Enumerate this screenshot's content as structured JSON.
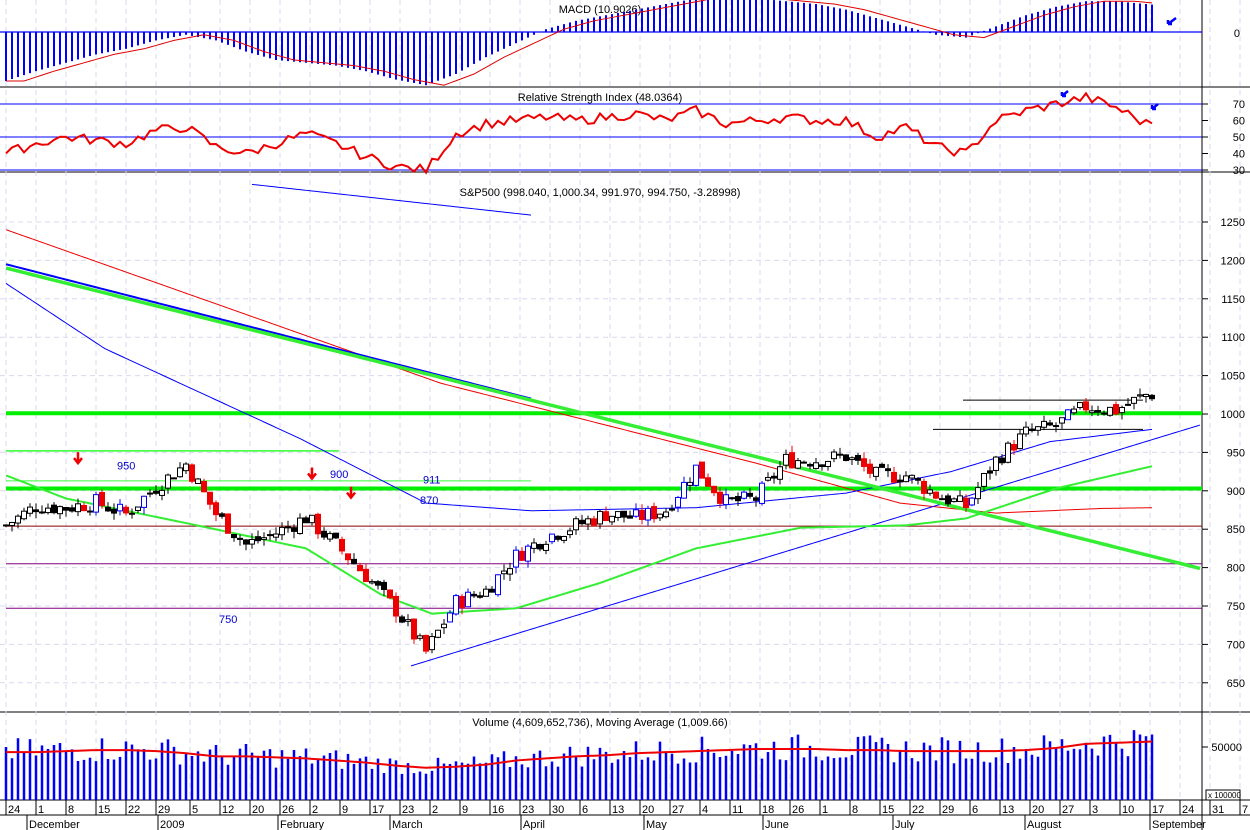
{
  "chart_data": {
    "type": "candlestick",
    "title": "S&P500 (998.040, 1,000.34, 991.970, 994.750, -3.28998)",
    "price_axis": {
      "ticks": [
        1250,
        1200,
        1150,
        1100,
        1050,
        1000,
        950,
        900,
        850,
        800,
        750,
        700,
        650
      ],
      "range": [
        615,
        1315
      ]
    },
    "weeks": [
      "Nov 24",
      "Dec 1",
      "Dec 8",
      "Dec 15",
      "Dec 22",
      "Dec 29",
      "Jan 5",
      "Jan 12",
      "Jan 20",
      "Jan 26",
      "Feb 2",
      "Feb 9",
      "Feb 17",
      "Feb 23",
      "Mar 2",
      "Mar 9",
      "Mar 16",
      "Mar 23",
      "Mar 30",
      "Apr 6",
      "Apr 13",
      "Apr 20",
      "Apr 27",
      "May 4",
      "May 11",
      "May 18",
      "May 26",
      "Jun 1",
      "Jun 8",
      "Jun 15",
      "Jun 22",
      "Jun 29",
      "Jul 6",
      "Jul 13",
      "Jul 20",
      "Jul 27",
      "Aug 3",
      "Aug 10",
      "Aug 17",
      "Aug 24",
      "Aug 31"
    ],
    "weekly_close": [
      855,
      880,
      878,
      885,
      870,
      905,
      935,
      870,
      830,
      845,
      865,
      830,
      790,
      745,
      690,
      755,
      770,
      815,
      840,
      855,
      870,
      865,
      875,
      930,
      885,
      890,
      940,
      940,
      945,
      920,
      920,
      895,
      880,
      940,
      975,
      985,
      1010,
      1005,
      1025,
      1030,
      995
    ],
    "x_ticks": [
      "24",
      "1",
      "8",
      "15",
      "22",
      "29",
      "5",
      "12",
      "20",
      "26",
      "2",
      "9",
      "17",
      "23",
      "2",
      "9",
      "16",
      "23",
      "30",
      "6",
      "13",
      "20",
      "27",
      "4",
      "11",
      "18",
      "26",
      "1",
      "8",
      "15",
      "22",
      "29",
      "6",
      "13",
      "20",
      "27",
      "3",
      "10",
      "17",
      "24",
      "31",
      "7"
    ],
    "months": [
      "December",
      "2009",
      "February",
      "March",
      "April",
      "May",
      "June",
      "July",
      "August",
      "September"
    ],
    "overlays": {
      "ma_green": [
        [
          0,
          920
        ],
        [
          2,
          890
        ],
        [
          6,
          858
        ],
        [
          10,
          825
        ],
        [
          12.5,
          765
        ],
        [
          14.2,
          740
        ],
        [
          17,
          747
        ],
        [
          19.8,
          780
        ],
        [
          23,
          825
        ],
        [
          26.5,
          852
        ],
        [
          30,
          855
        ],
        [
          32,
          864
        ],
        [
          35,
          903
        ],
        [
          38.2,
          932
        ]
      ],
      "ma_red": [
        [
          0,
          1240
        ],
        [
          14.5,
          1040
        ],
        [
          25,
          936
        ],
        [
          29.8,
          884
        ],
        [
          33,
          871
        ],
        [
          36.5,
          877
        ],
        [
          38.2,
          878
        ]
      ],
      "ma_blue": [
        [
          0,
          1170
        ],
        [
          3.3,
          1085
        ],
        [
          9.8,
          968
        ],
        [
          14,
          884
        ],
        [
          17.5,
          874
        ],
        [
          23,
          878
        ],
        [
          28,
          897
        ],
        [
          31.5,
          925
        ],
        [
          34.8,
          964
        ],
        [
          38.2,
          980
        ]
      ],
      "trend_green": [
        [
          0,
          1190
        ],
        [
          40,
          797
        ]
      ],
      "trend_blue_down": [
        [
          0,
          1195
        ],
        [
          17.5,
          1020
        ]
      ],
      "trend_blue_up": [
        [
          13.5,
          672
        ],
        [
          40,
          988
        ]
      ],
      "trend_blue_top": [
        [
          8.2,
          1299
        ],
        [
          17.5,
          1259
        ]
      ]
    },
    "hlines": [
      {
        "price": 1001,
        "color": "#00ee00",
        "width": 4,
        "from": 0,
        "to": 40
      },
      {
        "price": 903,
        "color": "#00ee00",
        "width": 4,
        "from": 0,
        "to": 40
      },
      {
        "price": 952,
        "color": "#33ff33",
        "width": 1.5,
        "from": 0,
        "to": 11.1
      },
      {
        "price": 913,
        "color": "#33ff33",
        "width": 1,
        "from": 0,
        "to": 17.5
      },
      {
        "price": 854,
        "color": "#880000",
        "width": 1,
        "from": 0,
        "to": 40
      },
      {
        "price": 805,
        "color": "#800080",
        "width": 1,
        "from": 0,
        "to": 40
      },
      {
        "price": 747,
        "color": "#800080",
        "width": 1,
        "from": 0,
        "to": 40
      },
      {
        "price": 1018,
        "color": "#000",
        "width": 1,
        "from": 31.9,
        "to": 37.9
      },
      {
        "price": 980,
        "color": "#000",
        "width": 1,
        "from": 30.9,
        "to": 37.9
      }
    ],
    "labels": [
      {
        "text": "950",
        "w": 3.7,
        "p": 933
      },
      {
        "text": "911",
        "w": 13.9,
        "p": 915
      },
      {
        "text": "900",
        "w": 10.8,
        "p": 922
      },
      {
        "text": "870",
        "w": 13.8,
        "p": 888
      },
      {
        "text": "750",
        "w": 7.1,
        "p": 733
      }
    ],
    "down_arrows": [
      [
        2.4,
        940
      ],
      [
        10.2,
        920
      ],
      [
        11.5,
        895
      ]
    ],
    "macd": {
      "title": "MACD (10.9026)",
      "zero_label": "0",
      "weekly": [
        -35,
        -28,
        -22,
        -16,
        -12,
        -6,
        -2,
        -6,
        -14,
        -20,
        -22,
        -24,
        -28,
        -34,
        -38,
        -30,
        -18,
        -8,
        2,
        8,
        12,
        16,
        20,
        24,
        26,
        24,
        22,
        20,
        16,
        10,
        4,
        -2,
        -4,
        4,
        12,
        18,
        22,
        22,
        20,
        18,
        16
      ]
    },
    "rsi": {
      "title": "Relative Strength Index (48.0364)",
      "ticks": [
        70,
        60,
        50,
        40,
        30
      ],
      "lines": [
        70,
        50,
        30
      ],
      "weekly": [
        40,
        46,
        50,
        48,
        46,
        54,
        56,
        44,
        40,
        46,
        52,
        46,
        38,
        32,
        30,
        52,
        58,
        60,
        62,
        60,
        62,
        64,
        60,
        66,
        58,
        60,
        62,
        60,
        60,
        50,
        56,
        44,
        40,
        60,
        66,
        70,
        74,
        68,
        58,
        67,
        48
      ]
    },
    "volume": {
      "title": "Volume (4,609,652,736), Moving Average (1,009.66)",
      "tick": "50000",
      "unit": "x 100000",
      "ma_weekly": [
        46000,
        46000,
        47000,
        48000,
        48000,
        47000,
        45000,
        42000,
        42000,
        41000,
        40000,
        38000,
        36000,
        33000,
        31000,
        32000,
        34000,
        38000,
        40000,
        42000,
        43000,
        45000,
        46000,
        47000,
        48000,
        49000,
        49000,
        49000,
        48000,
        48000,
        47000,
        47000,
        47000,
        47000,
        48000,
        50000,
        54000,
        55000,
        56000,
        57000,
        56000
      ]
    }
  }
}
